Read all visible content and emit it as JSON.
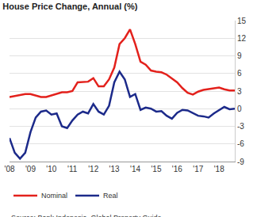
{
  "chart_data": {
    "type": "line",
    "title": "House Price Change, Annual (%)",
    "annotations": [
      "Source: Bank Indonesia, Global Property Guide"
    ],
    "categories": [
      "'08",
      null,
      null,
      null,
      "'09",
      null,
      null,
      null,
      "'10",
      null,
      null,
      null,
      "'11",
      null,
      null,
      null,
      "'12",
      null,
      null,
      null,
      "'13",
      null,
      null,
      null,
      "'14",
      null,
      null,
      null,
      "'15",
      null,
      null,
      null,
      "'16",
      null,
      null,
      null,
      "'17",
      null,
      null,
      null,
      "'18",
      null,
      null,
      null
    ],
    "series": [
      {
        "name": "Nominal",
        "color": "#e3211c",
        "values": [
          2.0,
          2.2,
          2.4,
          2.5,
          2.5,
          2.2,
          2.0,
          2.0,
          2.3,
          2.6,
          2.8,
          2.8,
          3.0,
          4.5,
          4.5,
          4.6,
          5.2,
          3.8,
          3.8,
          5.0,
          7.0,
          11.0,
          12.0,
          13.5,
          11.0,
          8.0,
          7.5,
          6.5,
          6.3,
          6.2,
          5.8,
          5.2,
          4.5,
          3.5,
          2.7,
          2.4,
          2.9,
          3.2,
          3.3,
          3.5,
          3.6,
          3.3,
          3.1,
          3.1
        ]
      },
      {
        "name": "Real",
        "color": "#1c2a8a",
        "values": [
          -5.0,
          -7.5,
          -8.5,
          -7.5,
          -4.0,
          -1.5,
          -0.5,
          -0.3,
          -1.0,
          -0.8,
          -3.0,
          -3.3,
          -2.0,
          -1.0,
          -0.5,
          -0.8,
          0.8,
          -0.5,
          -1.0,
          0.5,
          4.5,
          6.3,
          5.0,
          2.0,
          2.5,
          -0.2,
          0.2,
          0.0,
          -0.5,
          -0.4,
          -1.2,
          -1.7,
          -0.7,
          -0.2,
          -0.3,
          -0.7,
          -1.2,
          -1.3,
          -1.5,
          -0.8,
          -0.3,
          0.3,
          -0.1,
          0.0
        ]
      }
    ],
    "ylim": [
      -9,
      15
    ],
    "yticks": [
      -9,
      -6,
      -3,
      0,
      3,
      6,
      9,
      12,
      15
    ],
    "grid": true,
    "legend": "bottom left"
  }
}
